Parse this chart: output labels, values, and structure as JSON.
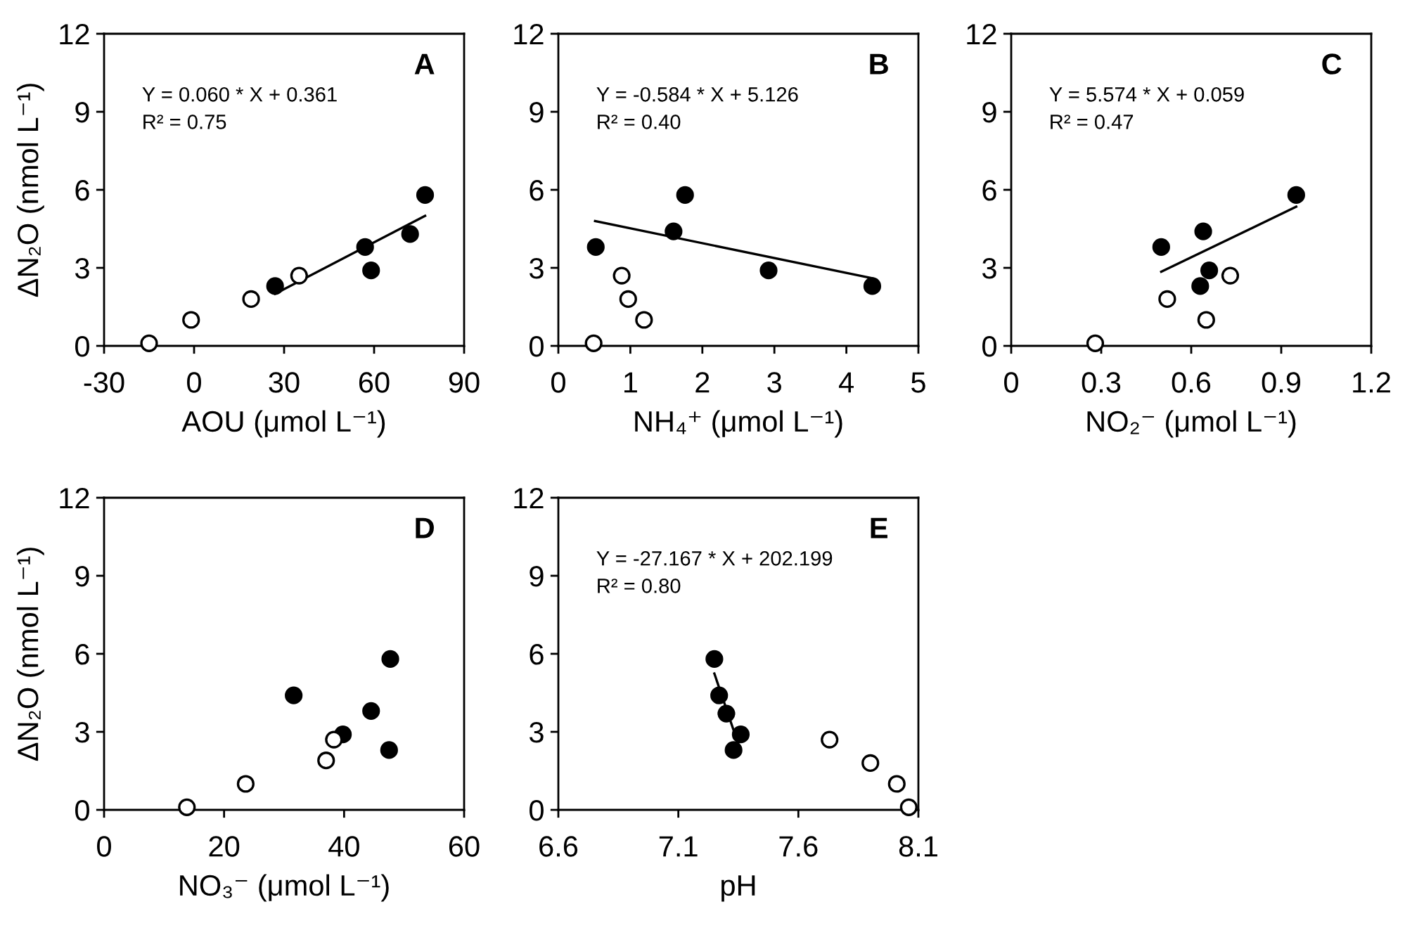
{
  "chart_data": [
    {
      "type": "scatter",
      "title": "A",
      "xlabel": "AOU (μmol L⁻¹)",
      "ylabel": "ΔN₂O (nmol L⁻¹)",
      "annotations": [
        "Y = 0.060 * X + 0.361",
        "R² = 0.75"
      ],
      "xlim": [
        -30,
        90
      ],
      "xticks": [
        -30,
        0,
        30,
        60,
        90
      ],
      "ylim": [
        0,
        12
      ],
      "yticks": [
        0,
        3,
        6,
        9,
        12
      ],
      "marker": "circle",
      "series": [
        {
          "color": "#000000",
          "x": [
            27,
            57,
            59,
            72,
            77
          ],
          "values": [
            2.3,
            3.8,
            2.9,
            4.3,
            5.8
          ]
        },
        {
          "color": "#ffffff",
          "x": [
            -15,
            -1,
            19,
            35
          ],
          "values": [
            0.1,
            1.0,
            1.8,
            2.7
          ]
        },
        {
          "type": "line",
          "marker": "none",
          "color": "#000000",
          "x": [
            27,
            77
          ],
          "values": [
            2.0,
            5.0
          ]
        }
      ]
    },
    {
      "type": "scatter",
      "title": "B",
      "xlabel": "NH₄⁺ (μmol L⁻¹)",
      "annotations": [
        "Y = -0.584 * X + 5.126",
        "R² = 0.40"
      ],
      "xlim": [
        0,
        5
      ],
      "xticks": [
        0,
        1,
        2,
        3,
        4,
        5
      ],
      "ylim": [
        0,
        12
      ],
      "yticks": [
        0,
        3,
        6,
        9,
        12
      ],
      "marker": "circle",
      "series": [
        {
          "color": "#000000",
          "x": [
            0.52,
            1.6,
            1.76,
            2.92,
            4.36
          ],
          "values": [
            3.8,
            4.4,
            5.8,
            2.9,
            2.3
          ]
        },
        {
          "color": "#ffffff",
          "x": [
            0.49,
            0.88,
            0.97,
            1.19
          ],
          "values": [
            0.1,
            2.7,
            1.8,
            1.0
          ]
        },
        {
          "type": "line",
          "marker": "none",
          "color": "#000000",
          "x": [
            0.51,
            4.36
          ],
          "values": [
            4.8,
            2.6
          ]
        }
      ]
    },
    {
      "type": "scatter",
      "title": "C",
      "xlabel": "NO₂⁻ (μmol L⁻¹)",
      "annotations": [
        "Y = 5.574 * X + 0.059",
        "R² = 0.47"
      ],
      "xlim": [
        0,
        1.2
      ],
      "xticks": [
        0,
        0.3,
        0.6,
        0.9,
        1.2
      ],
      "ylim": [
        0,
        12
      ],
      "yticks": [
        0,
        3,
        6,
        9,
        12
      ],
      "marker": "circle",
      "series": [
        {
          "color": "#000000",
          "x": [
            0.5,
            0.63,
            0.64,
            0.66,
            0.95
          ],
          "values": [
            3.8,
            2.3,
            4.4,
            2.9,
            5.8
          ]
        },
        {
          "color": "#ffffff",
          "x": [
            0.28,
            0.52,
            0.65,
            0.73
          ],
          "values": [
            0.1,
            1.8,
            1.0,
            2.7
          ]
        },
        {
          "type": "line",
          "marker": "none",
          "color": "#000000",
          "x": [
            0.5,
            0.95
          ],
          "values": [
            2.85,
            5.35
          ]
        }
      ]
    },
    {
      "type": "scatter",
      "title": "D",
      "xlabel": "NO₃⁻ (μmol L⁻¹)",
      "ylabel": "ΔN₂O (nmol L⁻¹)",
      "xlim": [
        0,
        60
      ],
      "xticks": [
        0,
        20,
        40,
        60
      ],
      "ylim": [
        0,
        12
      ],
      "yticks": [
        0,
        3,
        6,
        9,
        12
      ],
      "marker": "circle",
      "series": [
        {
          "color": "#000000",
          "x": [
            31.6,
            39.8,
            44.5,
            47.7,
            47.5
          ],
          "values": [
            4.4,
            2.9,
            3.8,
            5.8,
            2.3
          ]
        },
        {
          "color": "#ffffff",
          "x": [
            13.8,
            23.6,
            37.0,
            38.3
          ],
          "values": [
            0.1,
            1.0,
            1.9,
            2.7
          ]
        }
      ]
    },
    {
      "type": "scatter",
      "title": "E",
      "xlabel": "pH",
      "annotations": [
        "Y = -27.167 * X + 202.199",
        "R² = 0.80"
      ],
      "xlim": [
        6.6,
        8.1
      ],
      "xticks": [
        6.6,
        7.1,
        7.6,
        8.1
      ],
      "ylim": [
        0,
        12
      ],
      "yticks": [
        0,
        3,
        6,
        9,
        12
      ],
      "marker": "circle",
      "series": [
        {
          "color": "#000000",
          "x": [
            7.25,
            7.27,
            7.3,
            7.36,
            7.33
          ],
          "values": [
            5.8,
            4.4,
            3.7,
            2.9,
            2.3
          ]
        },
        {
          "color": "#ffffff",
          "x": [
            7.73,
            7.9,
            8.01,
            8.06
          ],
          "values": [
            2.7,
            1.8,
            1.0,
            0.1
          ]
        },
        {
          "type": "line",
          "marker": "none",
          "color": "#000000",
          "x": [
            7.25,
            7.35
          ],
          "values": [
            5.24,
            2.52
          ]
        }
      ]
    }
  ]
}
